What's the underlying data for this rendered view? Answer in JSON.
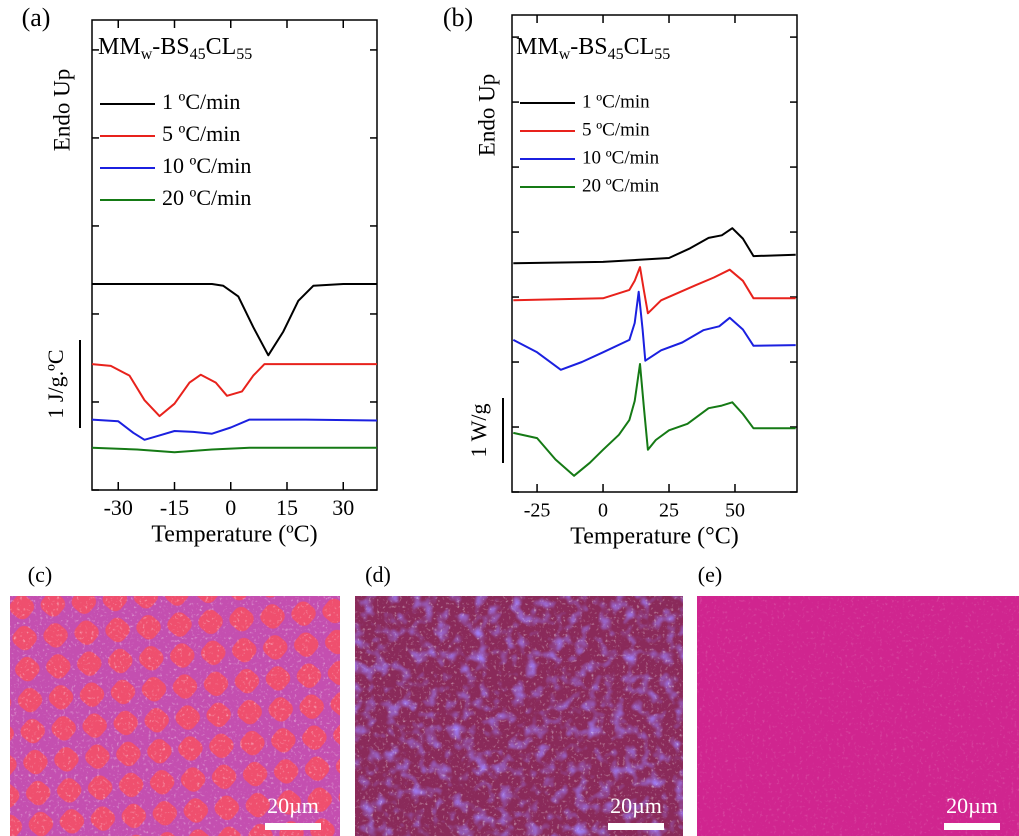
{
  "chart_data": [
    {
      "type": "line",
      "panel_label": "(a)",
      "title_parts": [
        "MM",
        "w",
        "-BS",
        "45",
        "CL",
        "55"
      ],
      "ylabel": "Endo Up",
      "xlabel": "Temperature (ºC)",
      "scale_bar": {
        "value": 1,
        "label": "1 J/g.ºC"
      },
      "xlim": [
        -37,
        39
      ],
      "xticks": [
        -30,
        -15,
        0,
        15,
        30
      ],
      "ylim": [
        0,
        5.34
      ],
      "yticks": [
        0,
        1,
        2,
        3,
        4,
        5
      ],
      "legend": "upper left",
      "series": [
        {
          "name": "1 ºC/min",
          "color": "#000000",
          "x": [
            -37,
            -20,
            -5,
            -2,
            2,
            6,
            10,
            14,
            18,
            22,
            30,
            39
          ],
          "values": [
            2.34,
            2.34,
            2.34,
            2.32,
            2.2,
            1.85,
            1.53,
            1.8,
            2.15,
            2.32,
            2.34,
            2.34
          ]
        },
        {
          "name": "5 ºC/min",
          "color": "#e8221c",
          "x": [
            -37,
            -32,
            -27,
            -23,
            -19,
            -15,
            -11,
            -8,
            -4,
            -1,
            3,
            6,
            9,
            20,
            39
          ],
          "values": [
            1.43,
            1.41,
            1.3,
            1.02,
            0.84,
            0.98,
            1.22,
            1.31,
            1.22,
            1.07,
            1.12,
            1.3,
            1.43,
            1.43,
            1.43
          ]
        },
        {
          "name": "10 ºC/min",
          "color": "#1b20e0",
          "x": [
            -37,
            -30,
            -26,
            -23,
            -19,
            -15,
            -10,
            -5,
            0,
            5,
            20,
            39
          ],
          "values": [
            0.8,
            0.78,
            0.65,
            0.57,
            0.62,
            0.67,
            0.66,
            0.64,
            0.71,
            0.8,
            0.8,
            0.79
          ]
        },
        {
          "name": "20 ºC/min",
          "color": "#157a15",
          "x": [
            -37,
            -25,
            -15,
            -5,
            5,
            39
          ],
          "values": [
            0.48,
            0.46,
            0.43,
            0.46,
            0.48,
            0.48
          ]
        }
      ]
    },
    {
      "type": "line",
      "panel_label": "(b)",
      "title_parts": [
        "MM",
        "w",
        "-BS",
        "45",
        "CL",
        "55"
      ],
      "ylabel": "Endo Up",
      "xlabel": "Temperature (°C)",
      "scale_bar": {
        "value": 1,
        "label": "1 W/g"
      },
      "xlim": [
        -34.5,
        73.5
      ],
      "xticks": [
        -25,
        0,
        25,
        50
      ],
      "ylim": [
        0,
        7.34
      ],
      "yticks": [
        0,
        1,
        2,
        3,
        4,
        5,
        6,
        7
      ],
      "legend": "upper left",
      "series": [
        {
          "name": "1 ºC/min",
          "color": "#000000",
          "x": [
            -34,
            0,
            25,
            33,
            40,
            45,
            49,
            53,
            57,
            73
          ],
          "values": [
            3.52,
            3.54,
            3.6,
            3.75,
            3.91,
            3.95,
            4.06,
            3.9,
            3.63,
            3.65
          ]
        },
        {
          "name": "5 ºC/min",
          "color": "#e8221c",
          "x": [
            -34,
            0,
            10,
            12,
            14,
            15.5,
            17,
            22,
            35,
            42,
            48,
            53,
            57,
            73
          ],
          "values": [
            2.95,
            2.98,
            3.11,
            3.25,
            3.46,
            3.1,
            2.75,
            2.95,
            3.18,
            3.3,
            3.42,
            3.25,
            2.98,
            2.98
          ]
        },
        {
          "name": "10 ºC/min",
          "color": "#1b20e0",
          "x": [
            -34,
            -25,
            -16,
            -8,
            0,
            10,
            12,
            13.5,
            15,
            16,
            22,
            30,
            38,
            44,
            48,
            53,
            57,
            73
          ],
          "values": [
            2.34,
            2.15,
            1.88,
            2.0,
            2.15,
            2.34,
            2.6,
            3.08,
            2.5,
            2.02,
            2.18,
            2.3,
            2.49,
            2.55,
            2.68,
            2.5,
            2.25,
            2.26
          ]
        },
        {
          "name": "20 ºC/min",
          "color": "#157a15",
          "x": [
            -34,
            -25,
            -18,
            -11,
            -5,
            0,
            6,
            10,
            12,
            14,
            15.5,
            17,
            20,
            25,
            32,
            40,
            45,
            49,
            53,
            57,
            73
          ],
          "values": [
            0.91,
            0.83,
            0.5,
            0.25,
            0.45,
            0.65,
            0.88,
            1.11,
            1.4,
            1.97,
            1.3,
            0.65,
            0.8,
            0.95,
            1.05,
            1.29,
            1.33,
            1.38,
            1.2,
            0.98,
            0.98
          ]
        }
      ]
    }
  ],
  "micrographs": [
    {
      "label": "(c)",
      "scale_bar": "20µm"
    },
    {
      "label": "(d)",
      "scale_bar": "20µm"
    },
    {
      "label": "(e)",
      "scale_bar": "20µm"
    }
  ]
}
